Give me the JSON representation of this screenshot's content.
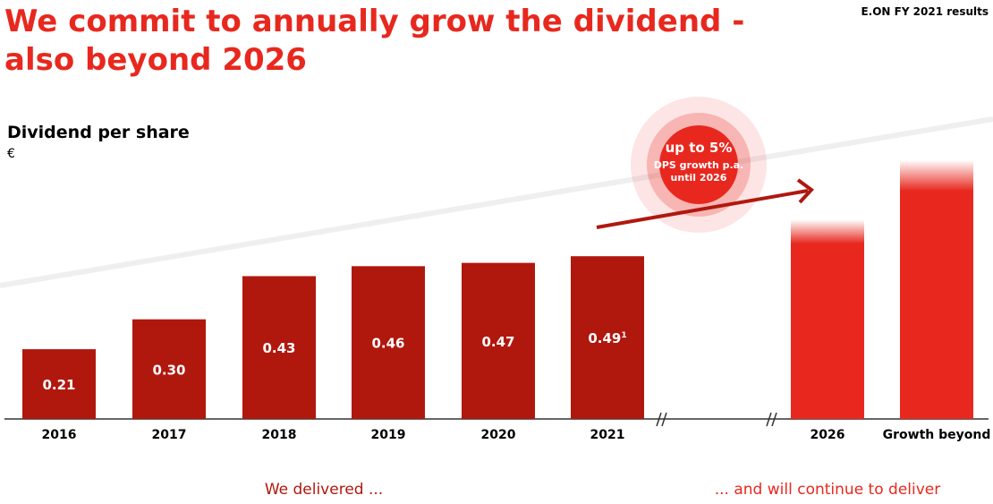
{
  "chart_data": {
    "type": "bar",
    "title_lines": [
      "We commit to annually grow the dividend -",
      "also beyond 2026"
    ],
    "header": "E.ON FY 2021 results",
    "subtitle": "Dividend per share",
    "unit": "€",
    "categories": [
      "2016",
      "2017",
      "2018",
      "2019",
      "2020",
      "2021",
      "2026",
      "Growth beyond"
    ],
    "values": [
      0.21,
      0.3,
      0.43,
      0.46,
      0.47,
      0.49,
      0.6,
      0.78
    ],
    "value_labels": [
      "0.21",
      "0.30",
      "0.43",
      "0.46",
      "0.47",
      "0.49",
      null,
      null
    ],
    "value_superscripts": [
      null,
      null,
      null,
      null,
      null,
      "1",
      null,
      null
    ],
    "projected": [
      false,
      false,
      false,
      false,
      false,
      false,
      true,
      true
    ],
    "colors": {
      "actual": "#b0180e",
      "projected": "#e8281e"
    },
    "badge": {
      "headline": "up to 5%",
      "lines": [
        "DPS growth p.a.",
        "until 2026"
      ]
    },
    "footers": [
      "We delivered ...",
      "... and will continue to deliver"
    ]
  }
}
